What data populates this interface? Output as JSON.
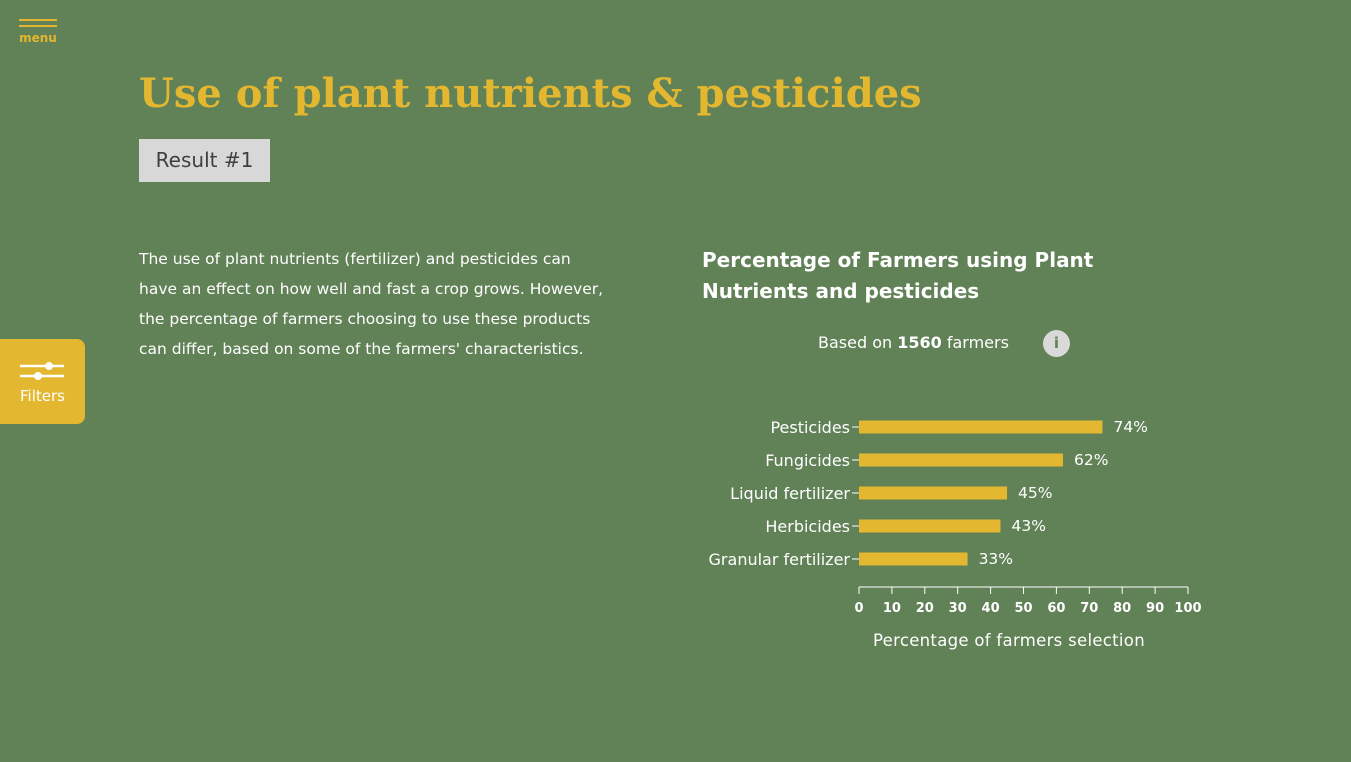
{
  "nav": {
    "menu_label": "menu"
  },
  "header": {
    "title": "Use of plant nutrients & pesticides",
    "badge": "Result #1"
  },
  "intro_text": "The use of plant nutrients (fertilizer) and pesticides can have an effect on how well and fast a crop grows. However, the percentage of farmers choosing to use these products can differ, based on some of the farmers' characteristics.",
  "filters": {
    "label": "Filters",
    "icon": "sliders-icon"
  },
  "chart_header": {
    "title": "Percentage of Farmers using Plant Nutrients and pesticides",
    "based_on_prefix": "Based on",
    "farmer_count": "1560",
    "based_on_suffix": "farmers",
    "info_glyph": "i",
    "info_icon": "info-icon"
  },
  "colors": {
    "background": "#618157",
    "accent": "#e3b72f",
    "badge_bg": "#d8d8d8",
    "text": "#ffffff"
  },
  "chart_data": {
    "type": "bar",
    "orientation": "horizontal",
    "categories": [
      "Pesticides",
      "Fungicides",
      "Liquid fertilizer",
      "Herbicides",
      "Granular fertilizer"
    ],
    "values": [
      74,
      62,
      45,
      43,
      33
    ],
    "value_labels": [
      "74%",
      "62%",
      "45%",
      "43%",
      "33%"
    ],
    "xlim": [
      0,
      100
    ],
    "xticks": [
      0,
      10,
      20,
      30,
      40,
      50,
      60,
      70,
      80,
      90,
      100
    ],
    "xlabel": "Percentage of farmers selection",
    "grid": false
  }
}
